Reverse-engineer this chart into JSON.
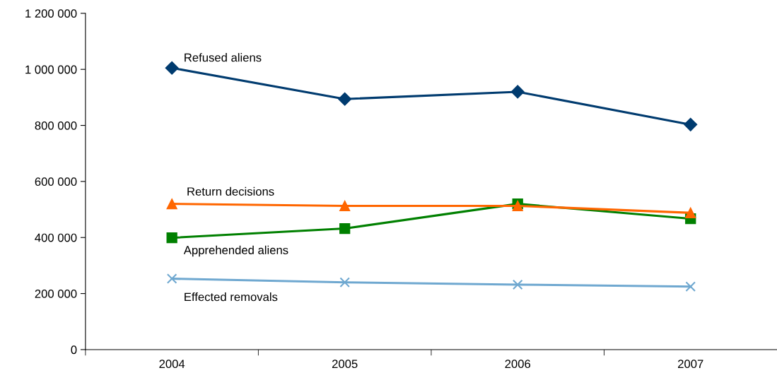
{
  "chart_data": {
    "type": "line",
    "categories": [
      "2004",
      "2005",
      "2006",
      "2007"
    ],
    "series": [
      {
        "name": "Refused aliens",
        "color": "#003b6f",
        "marker": "diamond",
        "values": [
          1005000,
          894000,
          920000,
          803000
        ]
      },
      {
        "name": "Return decisions",
        "color": "#ff6600",
        "marker": "triangle",
        "values": [
          520000,
          513000,
          513000,
          488000
        ]
      },
      {
        "name": "Apprehended aliens",
        "color": "#008000",
        "marker": "square",
        "values": [
          399000,
          432000,
          520000,
          467000
        ]
      },
      {
        "name": "Effected removals",
        "color": "#6fa8d0",
        "marker": "cross",
        "values": [
          253000,
          240000,
          232000,
          225000
        ]
      }
    ],
    "ylim": [
      0,
      1200000
    ],
    "yticks": [
      0,
      {
        "value": 200000,
        "label": "200 000"
      },
      {
        "value": 400000,
        "label": "400 000"
      },
      {
        "value": 600000,
        "label": "600 000"
      },
      {
        "value": 800000,
        "label": "800 000"
      },
      {
        "value": 1000000,
        "label": "1 000 000"
      },
      {
        "value": 1200000,
        "label": "1 200 000"
      }
    ],
    "grid": false,
    "legend": false,
    "line_style": "solid"
  }
}
